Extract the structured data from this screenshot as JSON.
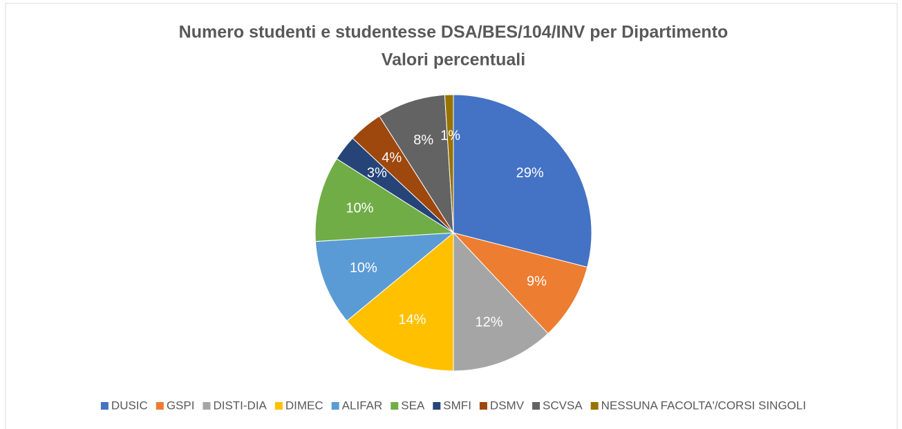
{
  "chart_data": {
    "type": "pie",
    "title": "Numero studenti e studentesse DSA/BES/104/INV per Dipartimento",
    "subtitle": "Valori percentuali",
    "categories": [
      "DUSIC",
      "GSPI",
      "DISTI-DIA",
      "DIMEC",
      "ALIFAR",
      "SEA",
      "SMFI",
      "DSMV",
      "SCVSA",
      "NESSUNA FACOLTA'/CORSI SINGOLI"
    ],
    "values": [
      29,
      9,
      12,
      14,
      10,
      10,
      3,
      4,
      8,
      1
    ],
    "value_labels": [
      "29%",
      "9%",
      "12%",
      "14%",
      "10%",
      "10%",
      "3%",
      "4%",
      "8%",
      "1%"
    ],
    "colors": [
      "#4472c4",
      "#ed7d31",
      "#a5a5a5",
      "#ffc000",
      "#5b9bd5",
      "#70ad47",
      "#264478",
      "#9e480e",
      "#636363",
      "#997300"
    ],
    "legend": "bottom"
  }
}
